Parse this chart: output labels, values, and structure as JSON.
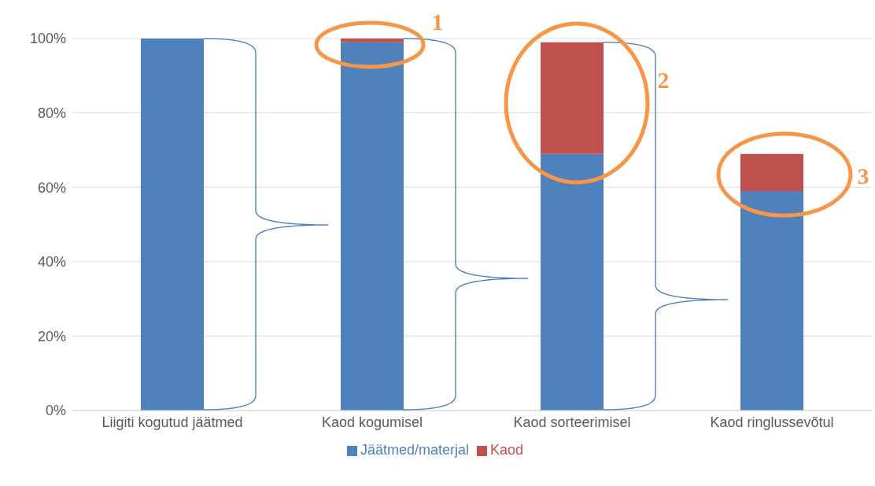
{
  "chart_data": {
    "type": "bar",
    "stacked": true,
    "categories": [
      "Liigiti kogutud jäätmed",
      "Kaod kogumisel",
      "Kaod sorteerimisel",
      "Kaod ringlussevõtul"
    ],
    "series": [
      {
        "name": "Jäätmed/materjal",
        "color": "#4f81bd",
        "values": [
          100,
          99,
          69,
          59
        ]
      },
      {
        "name": "Kaod",
        "color": "#c0504d",
        "values": [
          0,
          1,
          30,
          10
        ]
      }
    ],
    "ylim": [
      0,
      100
    ],
    "yticks": [
      {
        "value": 0,
        "label": "0%"
      },
      {
        "value": 20,
        "label": "20%"
      },
      {
        "value": 40,
        "label": "40%"
      },
      {
        "value": 60,
        "label": "60%"
      },
      {
        "value": 80,
        "label": "80%"
      },
      {
        "value": 100,
        "label": "100%"
      }
    ],
    "grid": "y",
    "legend": "bottom",
    "annotations": [
      "1",
      "2",
      "3"
    ]
  }
}
